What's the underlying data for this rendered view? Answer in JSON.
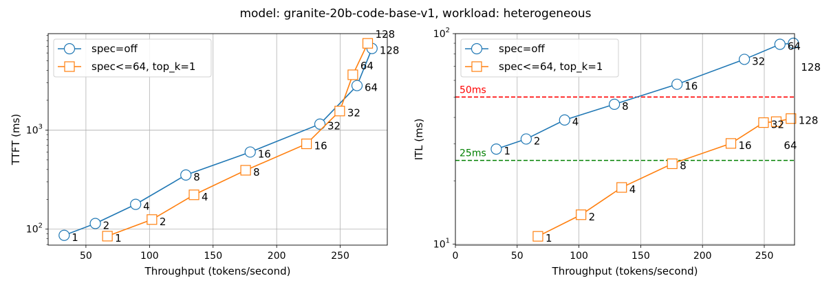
{
  "title": "model: granite-20b-code-base-v1, workload: heterogeneous",
  "chart_data": [
    {
      "type": "line",
      "xlabel": "Throughput (tokens/second)",
      "ylabel": "TTFT (ms)",
      "xlim": [
        20.3,
        287
      ],
      "ylim": [
        69,
        9400
      ],
      "yscale": "log",
      "xticks": [
        50,
        100,
        150,
        200,
        250
      ],
      "yticks": [
        {
          "value": 100,
          "base": "10",
          "exp": "2"
        },
        {
          "value": 1000,
          "base": "10",
          "exp": "3"
        }
      ],
      "grid": true,
      "legend": "top-left",
      "series": [
        {
          "name": "spec=off",
          "color": "#1f77b4",
          "marker": "circle",
          "x": [
            32.9,
            57.4,
            89.1,
            128.6,
            179.2,
            234.0,
            263.2,
            275.0
          ],
          "y": [
            86.6,
            114,
            178,
            352,
            600,
            1149,
            2810,
            6660
          ],
          "labels": [
            "1",
            "2",
            "4",
            "8",
            "16",
            "32",
            "64",
            "128"
          ]
        },
        {
          "name": "spec<=64, top_k=1",
          "color": "#ff7f0e",
          "marker": "square",
          "x": [
            66.9,
            101.9,
            135.0,
            175.6,
            223.5,
            249.6,
            259.9,
            271.6
          ],
          "y": [
            85,
            125,
            222,
            393,
            726,
            1556,
            3613,
            7500
          ],
          "labels": [
            "1",
            "2",
            "4",
            "8",
            "16",
            "32",
            "64",
            "128"
          ]
        }
      ]
    },
    {
      "type": "line",
      "xlabel": "Throughput (tokens/second)",
      "ylabel": "ITL (ms)",
      "xlim": [
        0,
        274.5
      ],
      "ylim": [
        9.9,
        100
      ],
      "yscale": "log",
      "xticks": [
        0,
        50,
        100,
        150,
        200,
        250
      ],
      "yticks": [
        {
          "value": 10,
          "base": "10",
          "exp": "1"
        },
        {
          "value": 100,
          "base": "10",
          "exp": "2"
        }
      ],
      "grid": true,
      "legend": "top-left",
      "hlines": [
        {
          "value": 50,
          "label": "50ms",
          "color": "#ff0000"
        },
        {
          "value": 25,
          "label": "25ms",
          "color": "#008000"
        }
      ],
      "series": [
        {
          "name": "spec=off",
          "color": "#1f77b4",
          "marker": "circle",
          "x": [
            33.1,
            57.3,
            88.4,
            128.7,
            179.4,
            233.9,
            262.7,
            273.6
          ],
          "y": [
            28.3,
            31.6,
            38.9,
            46.2,
            57.5,
            75.5,
            89,
            90
          ],
          "labels": [
            "1",
            "2",
            "4",
            "8",
            "16",
            "32",
            "64",
            "128"
          ]
        },
        {
          "name": "spec<=64, top_k=1",
          "color": "#ff7f0e",
          "marker": "square",
          "x": [
            66.8,
            101.7,
            134.6,
            175.5,
            223.0,
            249.4,
            259.7,
            271.6
          ],
          "y": [
            10.9,
            13.8,
            18.6,
            24.1,
            30.1,
            37.8,
            38.2,
            39.5
          ],
          "labels": [
            "1",
            "2",
            "4",
            "8",
            "16",
            "32",
            "64",
            "128"
          ]
        }
      ]
    }
  ]
}
